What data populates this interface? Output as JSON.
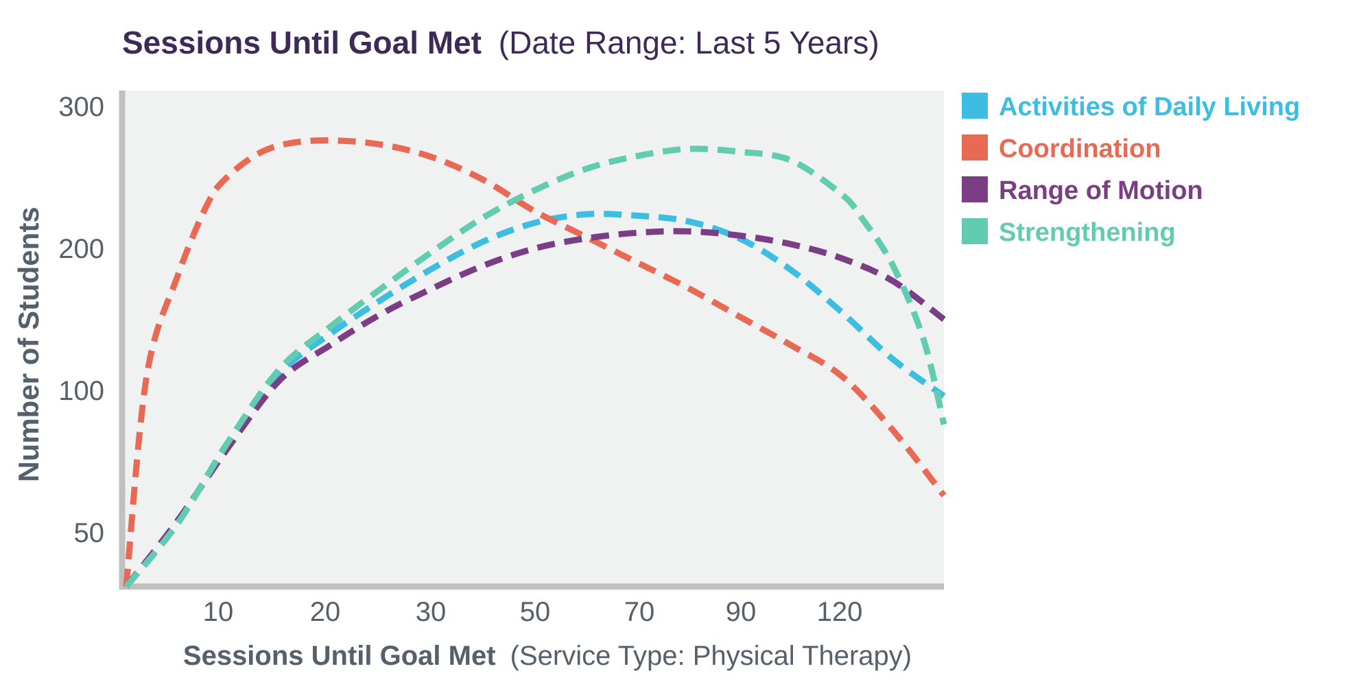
{
  "chart_data": {
    "type": "line",
    "title": "Sessions Until Goal Met",
    "subtitle": "(Date Range: Last 5 Years)",
    "xlabel": "Sessions Until Goal Met",
    "xlabel_suffix": "(Service Type: Physical Therapy)",
    "ylabel": "Number of Students",
    "x_tick_labels": [
      "10",
      "20",
      "30",
      "50",
      "70",
      "90",
      "120"
    ],
    "y_tick_labels": [
      "50",
      "100",
      "200",
      "300"
    ],
    "background": "#f0f1f1",
    "axis_color": "#c0c0c0",
    "legend_position": "right",
    "x_categories_note_free_positions": [
      1,
      2,
      3,
      4,
      5,
      6,
      7
    ],
    "series": [
      {
        "name": "Activities of Daily Living",
        "color": "#3dbde2",
        "x": [
          0,
          0.5,
          1,
          1.5,
          2,
          2.5,
          3,
          3.5,
          4,
          4.5,
          5,
          5.5,
          6,
          6.5,
          7,
          7.5,
          8
        ],
        "y": [
          25,
          53,
          82,
          112,
          140,
          164,
          186,
          205,
          218,
          224,
          223,
          219,
          207,
          185,
          155,
          122,
          98
        ]
      },
      {
        "name": "Coordination",
        "color": "#e86a55",
        "x": [
          0,
          0.2,
          0.5,
          0.8,
          1,
          1.3,
          1.6,
          2,
          2.5,
          3,
          3.5,
          4,
          4.5,
          5,
          5.5,
          6,
          6.5,
          7,
          7.5,
          8
        ],
        "y": [
          25,
          110,
          180,
          232,
          251,
          267,
          274,
          276,
          273,
          264,
          248,
          226,
          208,
          190,
          172,
          152,
          132,
          110,
          86,
          63
        ]
      },
      {
        "name": "Range of Motion",
        "color": "#7b3d84",
        "x": [
          0,
          0.5,
          1,
          1.5,
          2,
          2.5,
          3,
          3.5,
          4,
          4.5,
          5,
          5.5,
          6,
          6.5,
          7,
          7.5,
          8
        ],
        "y": [
          25,
          54,
          80,
          107,
          132,
          154,
          172,
          188,
          200,
          207,
          211,
          212,
          209,
          203,
          193,
          177,
          150
        ]
      },
      {
        "name": "Strengthening",
        "color": "#62ccb0",
        "x": [
          0,
          0.5,
          1,
          1.5,
          2,
          2.5,
          3,
          3.5,
          4,
          4.5,
          5,
          5.5,
          6,
          6.5,
          7,
          7.2,
          7.5,
          7.8,
          8
        ],
        "y": [
          25,
          53,
          82,
          115,
          145,
          172,
          198,
          222,
          241,
          256,
          265,
          270,
          268,
          262,
          238,
          221,
          188,
          136,
          88
        ]
      }
    ]
  }
}
